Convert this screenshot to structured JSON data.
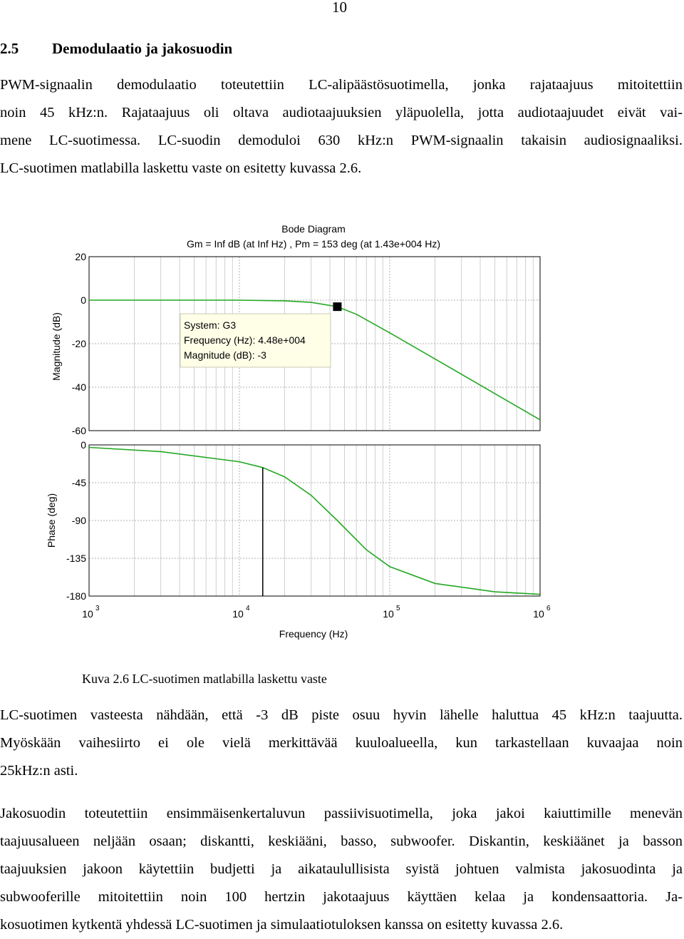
{
  "page_number": "10",
  "section": {
    "number": "2.5",
    "title": "Demodulaatio ja jakosuodin"
  },
  "paragraph1": [
    "PWM-signaalin demodulaatio toteutettiin LC-alipäästösuotimella, jonka rajataajuus mitoitettiin",
    "noin 45 kHz:n. Rajataajuus oli oltava audiotaajuuksien yläpuolella, jotta audiotaajuudet eivät vai-",
    "mene LC-suotimessa. LC-suodin demoduloi 630 kHz:n PWM-signaalin takaisin audiosignaaliksi.",
    "LC-suotimen matlabilla laskettu vaste on esitetty kuvassa 2.6."
  ],
  "figure": {
    "title": "Bode Diagram",
    "subtitle": "Gm = Inf dB (at Inf Hz) ,  Pm = 153 deg (at 1.43e+004 Hz)",
    "caption": "Kuva 2.6 LC-suotimen matlabilla laskettu vaste",
    "datatip": {
      "line1": "System: G3",
      "line2": "Frequency (Hz): 4.48e+004",
      "line3": "Magnitude (dB): -3"
    }
  },
  "chart_data": {
    "type": "line",
    "title": "Bode Diagram",
    "subtitle": "Gm = Inf dB (at Inf Hz) ,  Pm = 153 deg (at 1.43e+004 Hz)",
    "xlabel": "Frequency (Hz)",
    "xscale": "log",
    "xlim": [
      1000,
      1000000
    ],
    "x_ticks": [
      {
        "base": "10",
        "exp": "3"
      },
      {
        "base": "10",
        "exp": "4"
      },
      {
        "base": "10",
        "exp": "5"
      },
      {
        "base": "10",
        "exp": "6"
      }
    ],
    "color": "#22a822",
    "grid": true,
    "magnitude": {
      "ylabel": "Magnitude (dB)",
      "ylim": [
        -60,
        20
      ],
      "y_ticks": [
        "20",
        "0",
        "-20",
        "-40",
        "-60"
      ],
      "x": [
        1000,
        5000,
        10000,
        20000,
        30000,
        44800,
        60000,
        100000,
        200000,
        500000,
        1000000
      ],
      "y": [
        0,
        0,
        0,
        -0.3,
        -1,
        -3,
        -6.5,
        -15,
        -27,
        -43,
        -55
      ]
    },
    "phase": {
      "ylabel": "Phase (deg)",
      "ylim": [
        -180,
        0
      ],
      "y_ticks": [
        "0",
        "-45",
        "-90",
        "-135",
        "-180"
      ],
      "x": [
        1000,
        3000,
        10000,
        14300,
        20000,
        30000,
        44800,
        70000,
        100000,
        200000,
        500000,
        1000000
      ],
      "y": [
        -3,
        -8,
        -20,
        -27,
        -38,
        -60,
        -90,
        -125,
        -145,
        -165,
        -175,
        -178
      ]
    },
    "marker_frequency": 14300
  },
  "paragraph2": [
    "LC-suotimen vasteesta nähdään, että -3 dB piste osuu hyvin lähelle haluttua 45 kHz:n taajuutta.",
    "Myöskään vaihesiirto ei ole vielä merkittävää kuuloalueella, kun tarkastellaan kuvaajaa noin",
    "25kHz:n asti."
  ],
  "paragraph3": [
    "Jakosuodin toteutettiin ensimmäisenkertaluvun passiivisuotimella, joka jakoi kaiuttimille menevän",
    "taajuusalueen neljään osaan; diskantti, keskiääni, basso, subwoofer. Diskantin, keskiäänet ja basson",
    "taajuuksien jakoon käytettiin budjetti ja aikataulullisista syistä johtuen valmista jakosuodinta ja",
    "subwooferille mitoitettiin noin 100 hertzin jakotaajuus käyttäen kelaa ja kondensaattoria. Ja-",
    "kosuotimen kytkentä yhdessä LC-suotimen ja simulaatiotuloksen kanssa on esitetty kuvassa 2.6."
  ]
}
